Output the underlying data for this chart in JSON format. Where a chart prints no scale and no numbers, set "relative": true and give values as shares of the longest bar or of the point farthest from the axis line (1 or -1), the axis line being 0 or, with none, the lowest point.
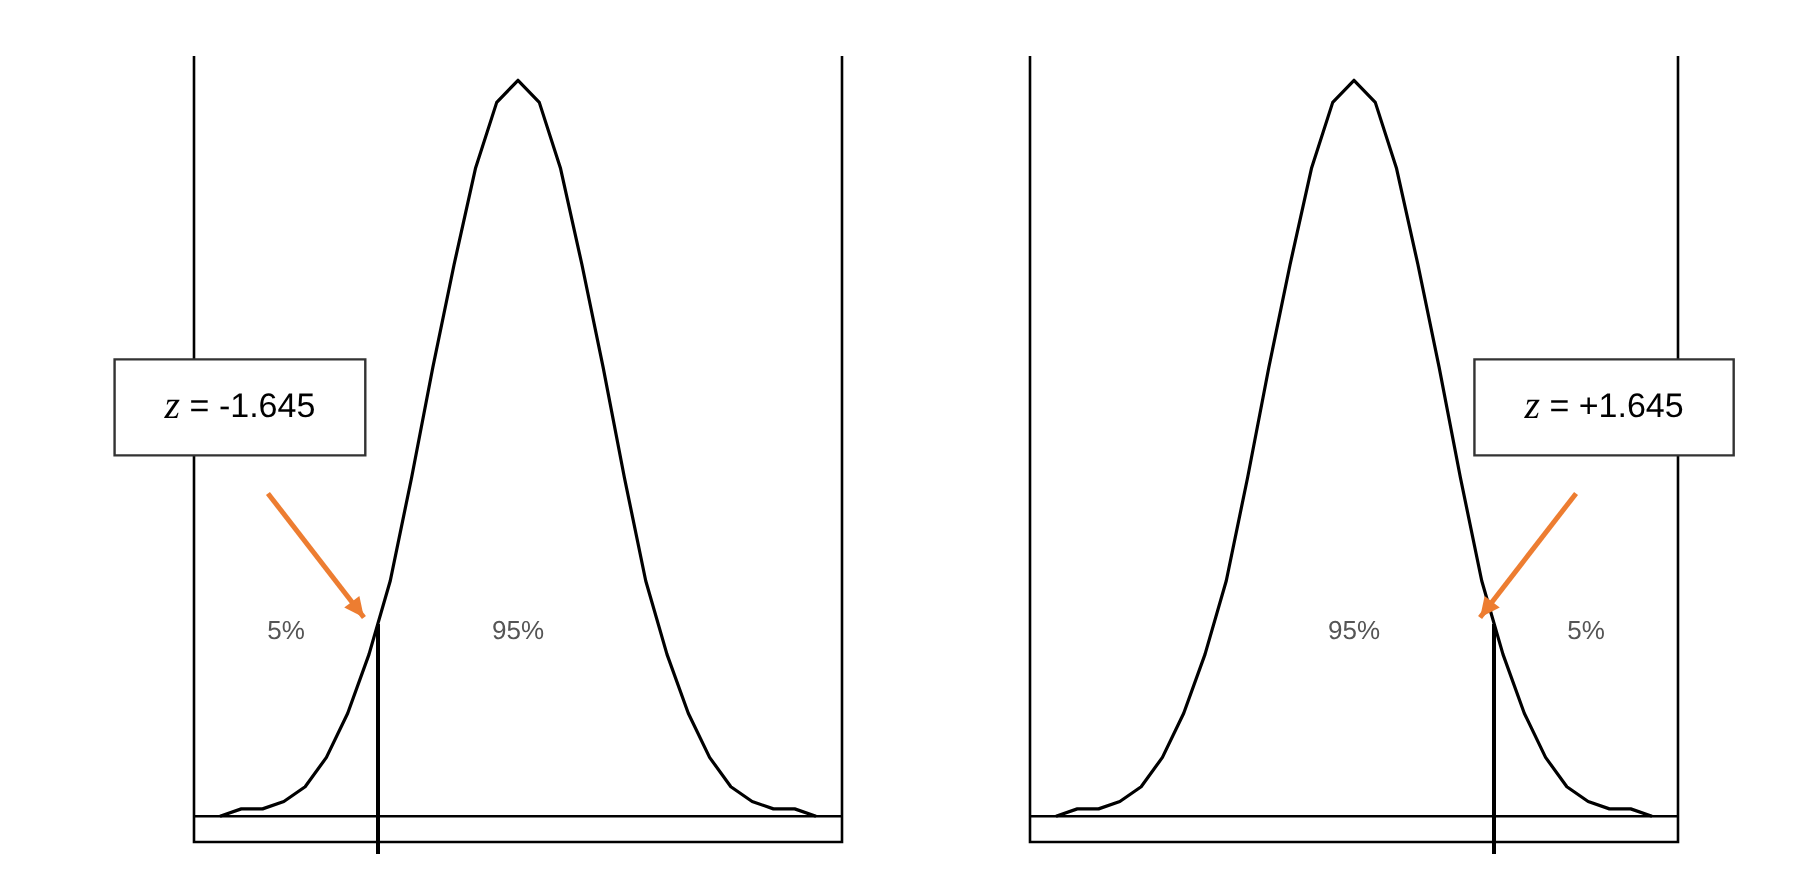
{
  "chart_data": [
    {
      "type": "line",
      "relative": true,
      "tick_labels": false,
      "categories": [
        null,
        null,
        null,
        null,
        null,
        null,
        null,
        null,
        null,
        null,
        null,
        null,
        null,
        null,
        null,
        null,
        null,
        null,
        null,
        null,
        null,
        null,
        null,
        null,
        null,
        null,
        null,
        null,
        null
      ],
      "series": [
        {
          "color": "#000000",
          "values": [
            0.0,
            0.01,
            0.01,
            0.02,
            0.04,
            0.08,
            0.14,
            0.22,
            0.32,
            0.46,
            0.61,
            0.75,
            0.88,
            0.97,
            1,
            0.97,
            0.88,
            0.75,
            0.61,
            0.46,
            0.32,
            0.22,
            0.14,
            0.08,
            0.04,
            0.02,
            0.01,
            0.01,
            0.0
          ]
        }
      ],
      "annotations": [
        "z = -1.645",
        "5%",
        "95%"
      ]
    },
    {
      "type": "line",
      "relative": true,
      "tick_labels": false,
      "categories": [
        null,
        null,
        null,
        null,
        null,
        null,
        null,
        null,
        null,
        null,
        null,
        null,
        null,
        null,
        null,
        null,
        null,
        null,
        null,
        null,
        null,
        null,
        null,
        null,
        null,
        null,
        null,
        null,
        null
      ],
      "series": [
        {
          "color": "#000000",
          "values": [
            0.0,
            0.01,
            0.01,
            0.02,
            0.04,
            0.08,
            0.14,
            0.22,
            0.32,
            0.46,
            0.61,
            0.75,
            0.88,
            0.97,
            1,
            0.97,
            0.88,
            0.75,
            0.61,
            0.46,
            0.32,
            0.22,
            0.14,
            0.08,
            0.04,
            0.02,
            0.01,
            0.01,
            0.0
          ]
        }
      ],
      "annotations": [
        "z = +1.645",
        "95%",
        "5%"
      ]
    }
  ]
}
